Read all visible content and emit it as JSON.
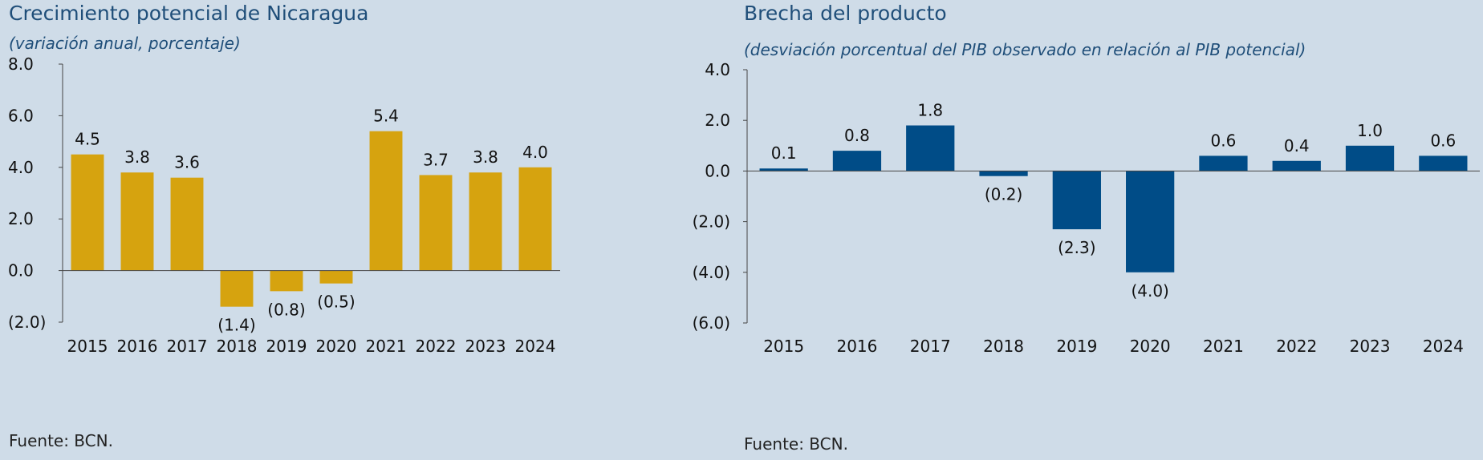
{
  "left": {
    "title": "Crecimiento potencial de Nicaragua",
    "subtitle": "(variación anual, porcentaje)",
    "source": "Fuente: BCN."
  },
  "right": {
    "title": "Brecha del producto",
    "subtitle": "(desviación porcentual del PIB observado en relación al PIB potencial)",
    "source": "Fuente: BCN."
  },
  "chart_data": [
    {
      "type": "bar",
      "title": "Crecimiento potencial de Nicaragua",
      "subtitle": "(variación anual, porcentaje)",
      "categories": [
        "2015",
        "2016",
        "2017",
        "2018",
        "2019",
        "2020",
        "2021",
        "2022",
        "2023",
        "2024"
      ],
      "values": [
        4.5,
        3.8,
        3.6,
        -1.4,
        -0.8,
        -0.5,
        5.4,
        3.7,
        3.8,
        4.0
      ],
      "value_labels": [
        "4.5",
        "3.8",
        "3.6",
        "(1.4)",
        "(0.8)",
        "(0.5)",
        "5.4",
        "3.7",
        "3.8",
        "4.0"
      ],
      "ylim": [
        -2,
        8
      ],
      "yticks": [
        8,
        6,
        4,
        2,
        0,
        -2
      ],
      "ytick_labels": [
        "8.0",
        "6.0",
        "4.0",
        "2.0",
        "0.0",
        "(2.0)"
      ],
      "bar_color": "#d6a30f",
      "grid": false,
      "legend": "none",
      "source": "Fuente: BCN."
    },
    {
      "type": "bar",
      "title": "Brecha del producto",
      "subtitle": "(desviación porcentual del PIB observado en relación al PIB potencial)",
      "categories": [
        "2015",
        "2016",
        "2017",
        "2018",
        "2019",
        "2020",
        "2021",
        "2022",
        "2023",
        "2024"
      ],
      "values": [
        0.1,
        0.8,
        1.8,
        -0.2,
        -2.3,
        -4.0,
        0.6,
        0.4,
        1.0,
        0.6
      ],
      "value_labels": [
        "0.1",
        "0.8",
        "1.8",
        "(0.2)",
        "(2.3)",
        "(4.0)",
        "0.6",
        "0.4",
        "1.0",
        "0.6"
      ],
      "ylim": [
        -6,
        4
      ],
      "yticks": [
        4,
        2,
        0,
        -2,
        -4,
        -6
      ],
      "ytick_labels": [
        "4.0",
        "2.0",
        "0.0",
        "(2.0)",
        "(4.0)",
        "(6.0)"
      ],
      "bar_color": "#004c87",
      "grid": false,
      "legend": "none",
      "source": "Fuente: BCN."
    }
  ]
}
